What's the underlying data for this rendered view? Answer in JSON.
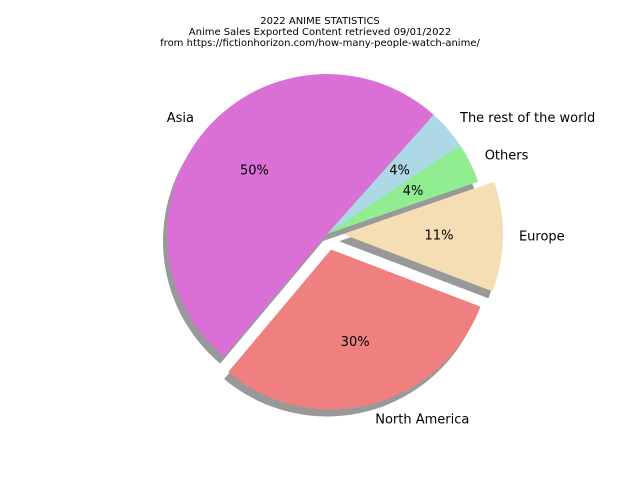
{
  "chart_data": {
    "type": "pie",
    "title": "2022 ANIME STATISTICS",
    "subtitle": [
      "Anime Sales Exported Content retrieved 09/01/2022",
      "from https://fictionhorizon.com/how-many-people-watch-anime/"
    ],
    "slices": [
      {
        "label": "North America",
        "value": 30,
        "pct_label": "30%",
        "color": "#f08080",
        "exploded": true
      },
      {
        "label": "Europe",
        "value": 11,
        "pct_label": "11%",
        "color": "#f5deb3",
        "exploded": true
      },
      {
        "label": "Others",
        "value": 4,
        "pct_label": "4%",
        "color": "#90ee90",
        "exploded": false
      },
      {
        "label": "The rest of the world",
        "value": 4,
        "pct_label": "4%",
        "color": "#add8e6",
        "exploded": false
      },
      {
        "label": "Asia",
        "value": 50,
        "pct_label": "50%",
        "color": "#da70d6",
        "exploded": false
      }
    ],
    "shadow": true,
    "legend": "none"
  }
}
